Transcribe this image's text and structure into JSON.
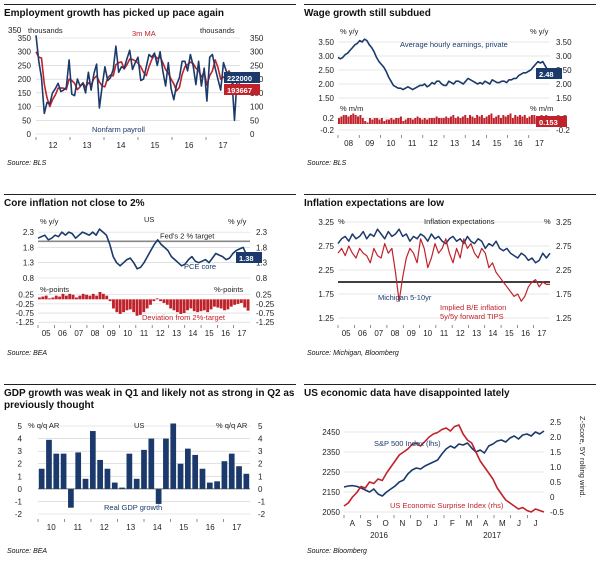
{
  "colors": {
    "navy": "#1b3a6b",
    "red": "#c0222b",
    "black": "#111111",
    "grid": "#cfcfcf"
  },
  "panels": [
    {
      "title": "Employment growth has picked up pace again",
      "source": "Source: BLS"
    },
    {
      "title": "Wage growth still subdued",
      "source": "Source: BLS"
    },
    {
      "title": "Core inflation not close to 2%",
      "source": "Source: BEA"
    },
    {
      "title": "Inflation expectations are low",
      "source": "Source: Michigan, Bloomberg"
    },
    {
      "title": "GDP growth was weak in Q1 and likely not as strong in Q2 as previously thought",
      "source": "Source: BEA"
    },
    {
      "title": "US economic data have disappointed lately",
      "source": "Source: Bloomberg"
    }
  ],
  "chart_data": [
    {
      "type": "line",
      "title": "Employment growth has picked up pace again",
      "x_ticks": [
        "12",
        "13",
        "14",
        "15",
        "16",
        "17"
      ],
      "y_ticks": [
        "0",
        "50",
        "100",
        "150",
        "200",
        "250",
        "300",
        "350"
      ],
      "ylim": [
        0,
        350
      ],
      "left_unit": "thousands",
      "right_unit": "thousands",
      "series": [
        {
          "name": "Nonfarm payroll",
          "color": "navy",
          "values": [
            360,
            265,
            205,
            75,
            115,
            110,
            150,
            165,
            185,
            155,
            160,
            170,
            270,
            145,
            140,
            200,
            175,
            185,
            150,
            225,
            160,
            220,
            255,
            95,
            175,
            245,
            195,
            205,
            235,
            320,
            225,
            245,
            240,
            275,
            305,
            235,
            260,
            280,
            195,
            200,
            245,
            290,
            280,
            295,
            250,
            300,
            230,
            175,
            260,
            165,
            125,
            180,
            205,
            265,
            265,
            230,
            290,
            250,
            180,
            265,
            175,
            240,
            120,
            280,
            290,
            240,
            200,
            160,
            260,
            230,
            200,
            210,
            50,
            210,
            222
          ]
        },
        {
          "name": "3m MA",
          "color": "red",
          "values": [
            300,
            280,
            277,
            182,
            132,
            100,
            125,
            142,
            167,
            168,
            167,
            162,
            200,
            195,
            185,
            162,
            172,
            187,
            170,
            187,
            178,
            202,
            212,
            190,
            175,
            172,
            205,
            215,
            212,
            253,
            260,
            263,
            237,
            253,
            273,
            272,
            267,
            258,
            245,
            225,
            213,
            245,
            272,
            288,
            275,
            282,
            260,
            235,
            222,
            200,
            183,
            157,
            170,
            217,
            245,
            253,
            262,
            257,
            240,
            232,
            207,
            227,
            178,
            213,
            230,
            270,
            243,
            200,
            207,
            217,
            230,
            213,
            153,
            157,
            194
          ]
        }
      ],
      "annotations": [
        "3m MA",
        "Nonfarm payroll"
      ],
      "end_labels": [
        {
          "text": "222000",
          "color": "navy"
        },
        {
          "text": "193667",
          "color": "red"
        }
      ]
    },
    {
      "type": "line",
      "title": "Wage growth still subdued",
      "x_ticks": [
        "08",
        "09",
        "10",
        "11",
        "12",
        "13",
        "14",
        "15",
        "16",
        "17"
      ],
      "top_y_ticks": [
        "1.50",
        "2.00",
        "2.50",
        "3.00",
        "3.50"
      ],
      "top_ylim": [
        1.5,
        3.5
      ],
      "top_unit_left": "% y/y",
      "top_unit_right": "% y/y",
      "series": [
        {
          "name": "Average hourly earnings, private",
          "color": "navy",
          "values": [
            2.95,
            2.9,
            2.95,
            3.05,
            3.1,
            3.2,
            3.3,
            3.4,
            3.45,
            3.55,
            3.5,
            3.6,
            3.55,
            3.4,
            3.3,
            3.15,
            2.95,
            2.8,
            2.7,
            2.6,
            2.45,
            2.25,
            2.1,
            1.95,
            1.9,
            1.85,
            1.85,
            1.8,
            1.85,
            1.9,
            1.85,
            1.8,
            1.85,
            1.9,
            1.95,
            1.95,
            2.0,
            1.9,
            1.95,
            2.05,
            2.0,
            2.1,
            2.1,
            2.0,
            1.95,
            1.95,
            2.1,
            2.05,
            2.0,
            2.1,
            2.1,
            2.05,
            2.0,
            2.1,
            2.2,
            2.15,
            2.1,
            2.05,
            2.0,
            2.05,
            2.0,
            2.1,
            2.05,
            2.0,
            2.15,
            2.1,
            2.05,
            2.05,
            2.1,
            2.1,
            2.05,
            2.15,
            2.15,
            2.2,
            2.2,
            2.3,
            2.35,
            2.4,
            2.4,
            2.45,
            2.5,
            2.6,
            2.7,
            2.8,
            2.75,
            2.8,
            2.65,
            2.5,
            2.48
          ]
        }
      ],
      "bottom_y_ticks": [
        "-0.2",
        "0.2"
      ],
      "bottom_unit_left": "% m/m",
      "bottom_unit_right": "% m/m",
      "bars": {
        "name": "Average hourly earnings m/m",
        "color": "red",
        "values": [
          0.2,
          0.25,
          0.3,
          0.3,
          0.25,
          0.3,
          0.35,
          0.3,
          0.25,
          0.3,
          0.2,
          0.1,
          0.05,
          0.2,
          0.15,
          0.2,
          0.2,
          0.15,
          0.2,
          0.1,
          0.15,
          0.15,
          0.2,
          0.15,
          0.2,
          0.2,
          0.25,
          0.1,
          0.15,
          0.2,
          0.2,
          0.15,
          0.2,
          0.25,
          0.2,
          0.15,
          0.2,
          0.15,
          0.2,
          0.2,
          0.2,
          0.25,
          0.2,
          0.2,
          0.2,
          0.25,
          0.2,
          0.25,
          0.3,
          0.2,
          0.25,
          0.2,
          0.25,
          0.3,
          0.2,
          0.3,
          0.25,
          0.2,
          0.3,
          0.25,
          0.3,
          0.2,
          0.25,
          0.3,
          0.35,
          0.2,
          0.25,
          0.3,
          0.2,
          0.3,
          0.25,
          0.3,
          0.35,
          0.2,
          0.3,
          0.25,
          0.3,
          0.25,
          0.3,
          0.2,
          0.25,
          0.3,
          0.3,
          0.2,
          0.25,
          0.3,
          0.2,
          0.3,
          0.153
        ]
      },
      "end_labels": [
        {
          "text": "2.48",
          "color": "navy"
        },
        {
          "text": "0.153",
          "color": "red"
        }
      ]
    },
    {
      "type": "line",
      "title": "Core inflation not close to 2%",
      "x_ticks": [
        "05",
        "06",
        "07",
        "08",
        "09",
        "10",
        "11",
        "12",
        "13",
        "14",
        "15",
        "16",
        "17"
      ],
      "top_y_ticks": [
        "0.8",
        "1.3",
        "1.8",
        "2.3"
      ],
      "top_ylim": [
        0.8,
        2.5
      ],
      "top_unit_left": "% y/y",
      "top_unit_right": "% y/y",
      "series": [
        {
          "name": "PCE core",
          "color": "navy",
          "values": [
            2.1,
            2.15,
            2.2,
            2.05,
            2.1,
            2.2,
            2.15,
            2.3,
            2.2,
            2.3,
            2.25,
            2.1,
            2.2,
            2.3,
            2.25,
            2.2,
            2.3,
            2.2,
            2.4,
            2.3,
            2.2,
            1.9,
            1.5,
            1.3,
            1.2,
            1.3,
            1.4,
            1.45,
            1.3,
            1.1,
            1.15,
            1.3,
            1.5,
            1.7,
            1.9,
            2.05,
            1.9,
            1.8,
            1.7,
            1.5,
            1.4,
            1.3,
            1.2,
            1.25,
            1.4,
            1.5,
            1.35,
            1.3,
            1.35,
            1.4,
            1.3,
            1.45,
            1.6,
            1.55,
            1.5,
            1.4,
            1.45,
            1.6,
            1.7,
            1.75,
            1.8,
            1.55,
            1.38
          ]
        }
      ],
      "reference_line": {
        "label": "Fed's 2 % target",
        "value": 2.0
      },
      "label_us": "US",
      "bottom_y_ticks": [
        "0.25",
        "-0.25",
        "-0.75",
        "-1.25"
      ],
      "bottom_unit_left": "%-points",
      "bottom_unit_right": "%-points",
      "bars": {
        "name": "Deviation from 2%-target",
        "color": "red",
        "values": [
          0.1,
          0.15,
          0.2,
          0.05,
          0.1,
          0.2,
          0.15,
          0.3,
          0.2,
          0.3,
          0.25,
          0.1,
          0.2,
          0.3,
          0.25,
          0.2,
          0.3,
          0.2,
          0.4,
          0.3,
          0.2,
          -0.1,
          -0.5,
          -0.7,
          -0.8,
          -0.7,
          -0.6,
          -0.55,
          -0.7,
          -0.9,
          -0.85,
          -0.7,
          -0.5,
          -0.3,
          -0.1,
          0.05,
          -0.1,
          -0.2,
          -0.3,
          -0.5,
          -0.6,
          -0.7,
          -0.8,
          -0.75,
          -0.6,
          -0.5,
          -0.65,
          -0.7,
          -0.65,
          -0.6,
          -0.7,
          -0.55,
          -0.4,
          -0.45,
          -0.5,
          -0.6,
          -0.55,
          -0.4,
          -0.3,
          -0.25,
          -0.2,
          -0.45,
          -0.62
        ]
      },
      "end_labels": [
        {
          "text": "1.38",
          "color": "navy"
        }
      ]
    },
    {
      "type": "line",
      "title": "Inflation expectations are low",
      "x_ticks": [
        "05",
        "06",
        "07",
        "08",
        "09",
        "10",
        "11",
        "12",
        "13",
        "14",
        "15",
        "16",
        "17"
      ],
      "y_ticks": [
        "1.25",
        "1.75",
        "2.25",
        "2.75",
        "3.25"
      ],
      "ylim": [
        1.25,
        3.25
      ],
      "left_unit": "%",
      "right_unit": "%",
      "annotations": [
        "Inflation expectations",
        "Michigan 5-10yr",
        "Implied B/E inflation",
        "5y/5y forward TIPS"
      ],
      "reference_line": {
        "value": 2.0
      },
      "series": [
        {
          "name": "Michigan 5-10yr",
          "color": "navy",
          "values": [
            2.8,
            2.9,
            2.95,
            2.85,
            3.0,
            2.9,
            2.95,
            3.05,
            2.9,
            3.0,
            2.95,
            3.1,
            3.0,
            2.9,
            3.05,
            2.95,
            3.0,
            3.1,
            2.95,
            3.0,
            2.85,
            2.95,
            2.9,
            3.0,
            2.95,
            2.85,
            3.0,
            2.9,
            2.95,
            2.85,
            2.8,
            2.9,
            2.95,
            2.85,
            2.9,
            2.8,
            2.95,
            2.85,
            2.8,
            2.9,
            2.85,
            2.7,
            2.8,
            2.75,
            2.85,
            2.7,
            2.65,
            2.7,
            2.6,
            2.55,
            2.5,
            2.6,
            2.55,
            2.45,
            2.5,
            2.4,
            2.45,
            2.6,
            2.5,
            2.6
          ]
        },
        {
          "name": "5y/5y forward TIPS",
          "color": "red",
          "values": [
            2.6,
            2.7,
            2.55,
            2.75,
            2.6,
            2.5,
            2.7,
            2.6,
            2.55,
            2.4,
            2.7,
            2.55,
            2.5,
            2.8,
            2.6,
            2.7,
            2.2,
            1.6,
            2.1,
            2.5,
            2.7,
            2.6,
            2.4,
            2.9,
            2.7,
            2.3,
            2.5,
            2.8,
            2.6,
            2.7,
            2.9,
            2.6,
            2.4,
            2.7,
            2.5,
            2.9,
            2.7,
            2.8,
            2.6,
            2.5,
            2.7,
            2.6,
            2.3,
            2.4,
            2.2,
            2.1,
            2.0,
            1.9,
            1.8,
            1.7,
            1.75,
            1.6,
            1.7,
            1.9,
            2.0,
            2.05,
            1.9,
            2.0,
            1.95,
            1.95
          ]
        }
      ]
    },
    {
      "type": "bar",
      "title": "GDP growth was weak in Q1 and likely not as strong in Q2 as previously thought",
      "x_ticks": [
        "10",
        "11",
        "12",
        "13",
        "14",
        "15",
        "16",
        "17"
      ],
      "y_ticks": [
        "-2",
        "-1",
        "0",
        "1",
        "2",
        "3",
        "4",
        "5"
      ],
      "ylim": [
        -2,
        5
      ],
      "left_unit": "% q/q AR",
      "right_unit": "% q/q AR",
      "label_us": "US",
      "series": [
        {
          "name": "Real GDP growth",
          "color": "navy",
          "values": [
            1.6,
            3.9,
            2.8,
            2.8,
            -1.5,
            2.9,
            0.8,
            4.6,
            2.3,
            1.6,
            0.5,
            0.1,
            2.8,
            0.8,
            3.1,
            4.0,
            -1.2,
            4.0,
            5.2,
            2.0,
            3.2,
            2.7,
            1.6,
            0.5,
            0.6,
            2.2,
            2.8,
            1.8,
            1.2
          ]
        }
      ]
    },
    {
      "type": "line",
      "title": "US economic data have disappointed lately",
      "x_ticks": [
        "A",
        "S",
        "O",
        "N",
        "D",
        "J",
        "F",
        "M",
        "A",
        "M",
        "J",
        "J"
      ],
      "year_labels": [
        "2016",
        "2017"
      ],
      "left_y_ticks": [
        "2050",
        "2150",
        "2250",
        "2350",
        "2450"
      ],
      "left_ylim": [
        2050,
        2500
      ],
      "right_y_ticks": [
        "-0.5",
        "0",
        "0.5",
        "1.0",
        "1.5",
        "2.0",
        "2.5"
      ],
      "right_ylim": [
        -0.5,
        2.5
      ],
      "right_axis_label": "Z-Score, 5Y rolling wind.",
      "series": [
        {
          "name": "S&P 500 Index (lhs)",
          "color": "navy",
          "axis": "left",
          "values": [
            2175,
            2180,
            2182,
            2178,
            2170,
            2160,
            2150,
            2165,
            2140,
            2130,
            2150,
            2165,
            2180,
            2200,
            2210,
            2240,
            2260,
            2270,
            2265,
            2280,
            2290,
            2300,
            2310,
            2340,
            2365,
            2380,
            2370,
            2390,
            2385,
            2395,
            2370,
            2350,
            2360,
            2345,
            2380,
            2390,
            2405,
            2410,
            2400,
            2420,
            2430,
            2415,
            2435,
            2440,
            2430,
            2450,
            2440,
            2455
          ]
        },
        {
          "name": "US Economic Surprise Index (rhs)",
          "color": "red",
          "axis": "right",
          "values": [
            -0.3,
            -0.2,
            0.0,
            0.15,
            0.35,
            0.3,
            0.5,
            0.45,
            0.6,
            0.55,
            0.8,
            1.0,
            1.2,
            1.4,
            1.5,
            1.6,
            1.75,
            1.8,
            1.7,
            1.85,
            2.0,
            2.1,
            2.15,
            2.25,
            2.3,
            2.2,
            2.35,
            2.4,
            2.1,
            1.9,
            1.8,
            1.5,
            1.2,
            1.0,
            0.8,
            0.6,
            0.3,
            0.1,
            -0.1,
            -0.2,
            -0.3,
            -0.4,
            -0.35,
            -0.45,
            -0.5,
            -0.4,
            -0.45,
            -0.5
          ]
        }
      ]
    }
  ]
}
